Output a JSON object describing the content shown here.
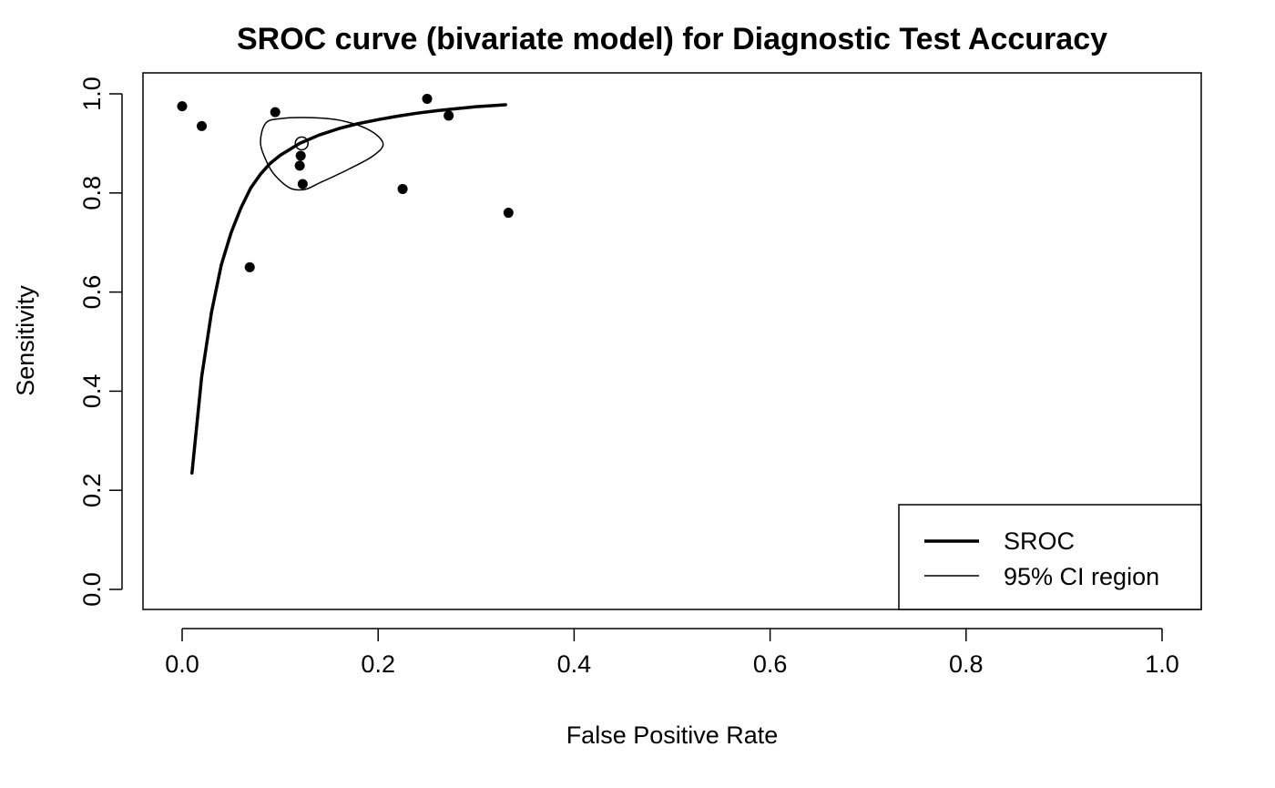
{
  "chart_data": {
    "type": "scatter",
    "title": "SROC curve (bivariate model) for Diagnostic Test Accuracy",
    "xlabel": "False Positive Rate",
    "ylabel": "Sensitivity",
    "xlim": [
      0,
      1
    ],
    "ylim": [
      0,
      1
    ],
    "x_ticks": [
      "0.0",
      "0.2",
      "0.4",
      "0.6",
      "0.8",
      "1.0"
    ],
    "y_ticks": [
      "0.0",
      "0.2",
      "0.4",
      "0.6",
      "0.8",
      "1.0"
    ],
    "grid": false,
    "legend_position": "bottom-right",
    "legend": [
      {
        "label": "SROC",
        "style": "thick line"
      },
      {
        "label": "95% CI region",
        "style": "thin line"
      }
    ],
    "studies": [
      {
        "x": 0.0,
        "y": 0.975
      },
      {
        "x": 0.02,
        "y": 0.935
      },
      {
        "x": 0.069,
        "y": 0.65
      },
      {
        "x": 0.095,
        "y": 0.963
      },
      {
        "x": 0.12,
        "y": 0.855
      },
      {
        "x": 0.121,
        "y": 0.875
      },
      {
        "x": 0.123,
        "y": 0.818
      },
      {
        "x": 0.225,
        "y": 0.808
      },
      {
        "x": 0.25,
        "y": 0.99
      },
      {
        "x": 0.272,
        "y": 0.956
      },
      {
        "x": 0.333,
        "y": 0.76
      }
    ],
    "summary_point": {
      "x": 0.122,
      "y": 0.9
    },
    "sroc_curve": {
      "x": [
        0.01,
        0.02,
        0.03,
        0.04,
        0.05,
        0.06,
        0.07,
        0.08,
        0.09,
        0.1,
        0.12,
        0.14,
        0.16,
        0.18,
        0.2,
        0.22,
        0.24,
        0.26,
        0.28,
        0.3,
        0.33
      ],
      "y": [
        0.235,
        0.43,
        0.56,
        0.655,
        0.72,
        0.77,
        0.81,
        0.838,
        0.86,
        0.876,
        0.9,
        0.917,
        0.93,
        0.94,
        0.948,
        0.955,
        0.961,
        0.966,
        0.97,
        0.974,
        0.978
      ]
    },
    "ci_ellipse": {
      "x": [
        0.085,
        0.1,
        0.13,
        0.16,
        0.19,
        0.205,
        0.195,
        0.17,
        0.14,
        0.125,
        0.11,
        0.095,
        0.087,
        0.08,
        0.085
      ],
      "y": [
        0.94,
        0.95,
        0.952,
        0.947,
        0.928,
        0.9,
        0.875,
        0.848,
        0.82,
        0.807,
        0.81,
        0.835,
        0.86,
        0.9,
        0.94
      ]
    },
    "colors": {
      "points": "#000000",
      "lines": "#000000",
      "background": "#ffffff"
    }
  }
}
